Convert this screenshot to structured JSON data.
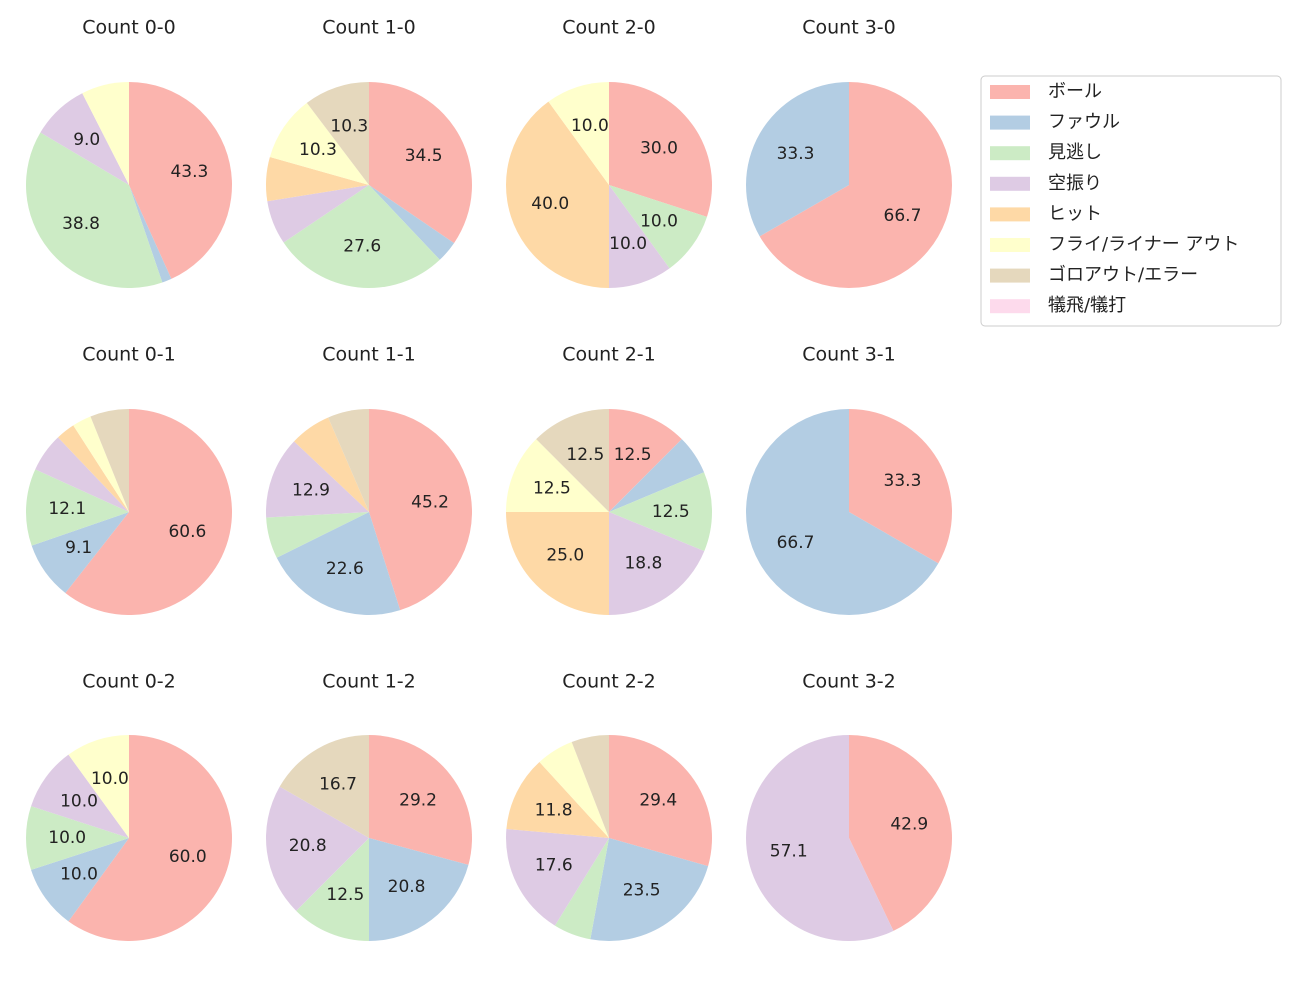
{
  "chart_data": [
    {
      "type": "pie",
      "title": "Count 0-0",
      "categories": [
        "ボール",
        "ファウル",
        "見逃し",
        "空振り",
        "ヒット",
        "フライ/ライナー アウト",
        "ゴロアウト/エラー",
        "犠飛/犠打"
      ],
      "colors": [
        "#fbb4ae",
        "#b3cde3",
        "#ccebc5",
        "#decbe4",
        "#fed9a6",
        "#ffffcc",
        "#e5d8bd",
        "#fddaec"
      ],
      "values": [
        43.3,
        1.5,
        38.8,
        9.0,
        0,
        7.5,
        0,
        0
      ],
      "value_labels": [
        "43.3",
        null,
        "38.8",
        "9.0",
        null,
        null,
        null,
        null
      ]
    },
    {
      "type": "pie",
      "title": "Count 1-0",
      "categories": [
        "ボール",
        "ファウル",
        "見逃し",
        "空振り",
        "ヒット",
        "フライ/ライナー アウト",
        "ゴロアウト/エラー",
        "犠飛/犠打"
      ],
      "colors": [
        "#fbb4ae",
        "#b3cde3",
        "#ccebc5",
        "#decbe4",
        "#fed9a6",
        "#ffffcc",
        "#e5d8bd",
        "#fddaec"
      ],
      "values": [
        34.5,
        3.4,
        27.6,
        6.9,
        6.9,
        10.3,
        10.3,
        0
      ],
      "value_labels": [
        "34.5",
        null,
        "27.6",
        null,
        null,
        "10.3",
        "10.3",
        null
      ]
    },
    {
      "type": "pie",
      "title": "Count 2-0",
      "categories": [
        "ボール",
        "ファウル",
        "見逃し",
        "空振り",
        "ヒット",
        "フライ/ライナー アウト",
        "ゴロアウト/エラー",
        "犠飛/犠打"
      ],
      "colors": [
        "#fbb4ae",
        "#b3cde3",
        "#ccebc5",
        "#decbe4",
        "#fed9a6",
        "#ffffcc",
        "#e5d8bd",
        "#fddaec"
      ],
      "values": [
        30.0,
        0,
        10.0,
        10.0,
        40.0,
        10.0,
        0,
        0
      ],
      "value_labels": [
        "30.0",
        null,
        "10.0",
        "10.0",
        "40.0",
        "10.0",
        null,
        null
      ]
    },
    {
      "type": "pie",
      "title": "Count 3-0",
      "categories": [
        "ボール",
        "ファウル",
        "見逃し",
        "空振り",
        "ヒット",
        "フライ/ライナー アウト",
        "ゴロアウト/エラー",
        "犠飛/犠打"
      ],
      "colors": [
        "#fbb4ae",
        "#b3cde3",
        "#ccebc5",
        "#decbe4",
        "#fed9a6",
        "#ffffcc",
        "#e5d8bd",
        "#fddaec"
      ],
      "values": [
        66.7,
        33.3,
        0,
        0,
        0,
        0,
        0,
        0
      ],
      "value_labels": [
        "66.7",
        "33.3",
        null,
        null,
        null,
        null,
        null,
        null
      ]
    },
    {
      "type": "pie",
      "title": "Count 0-1",
      "categories": [
        "ボール",
        "ファウル",
        "見逃し",
        "空振り",
        "ヒット",
        "フライ/ライナー アウト",
        "ゴロアウト/エラー",
        "犠飛/犠打"
      ],
      "colors": [
        "#fbb4ae",
        "#b3cde3",
        "#ccebc5",
        "#decbe4",
        "#fed9a6",
        "#ffffcc",
        "#e5d8bd",
        "#fddaec"
      ],
      "values": [
        60.6,
        9.1,
        12.1,
        6.1,
        3.0,
        3.0,
        6.1,
        0
      ],
      "value_labels": [
        "60.6",
        "9.1",
        "12.1",
        null,
        null,
        null,
        null,
        null
      ]
    },
    {
      "type": "pie",
      "title": "Count 1-1",
      "categories": [
        "ボール",
        "ファウル",
        "見逃し",
        "空振り",
        "ヒット",
        "フライ/ライナー アウト",
        "ゴロアウト/エラー",
        "犠飛/犠打"
      ],
      "colors": [
        "#fbb4ae",
        "#b3cde3",
        "#ccebc5",
        "#decbe4",
        "#fed9a6",
        "#ffffcc",
        "#e5d8bd",
        "#fddaec"
      ],
      "values": [
        45.2,
        22.6,
        6.5,
        12.9,
        6.5,
        0,
        6.5,
        0
      ],
      "value_labels": [
        "45.2",
        "22.6",
        null,
        "12.9",
        null,
        null,
        null,
        null
      ]
    },
    {
      "type": "pie",
      "title": "Count 2-1",
      "categories": [
        "ボール",
        "ファウル",
        "見逃し",
        "空振り",
        "ヒット",
        "フライ/ライナー アウト",
        "ゴロアウト/エラー",
        "犠飛/犠打"
      ],
      "colors": [
        "#fbb4ae",
        "#b3cde3",
        "#ccebc5",
        "#decbe4",
        "#fed9a6",
        "#ffffcc",
        "#e5d8bd",
        "#fddaec"
      ],
      "values": [
        12.5,
        6.2,
        12.5,
        18.8,
        25.0,
        12.5,
        12.5,
        0
      ],
      "value_labels": [
        "12.5",
        null,
        "12.5",
        "18.8",
        "25.0",
        "12.5",
        "12.5",
        null
      ]
    },
    {
      "type": "pie",
      "title": "Count 3-1",
      "categories": [
        "ボール",
        "ファウル",
        "見逃し",
        "空振り",
        "ヒット",
        "フライ/ライナー アウト",
        "ゴロアウト/エラー",
        "犠飛/犠打"
      ],
      "colors": [
        "#fbb4ae",
        "#b3cde3",
        "#ccebc5",
        "#decbe4",
        "#fed9a6",
        "#ffffcc",
        "#e5d8bd",
        "#fddaec"
      ],
      "values": [
        33.3,
        66.7,
        0,
        0,
        0,
        0,
        0,
        0
      ],
      "value_labels": [
        "33.3",
        "66.7",
        null,
        null,
        null,
        null,
        null,
        null
      ]
    },
    {
      "type": "pie",
      "title": "Count 0-2",
      "categories": [
        "ボール",
        "ファウル",
        "見逃し",
        "空振り",
        "ヒット",
        "フライ/ライナー アウト",
        "ゴロアウト/エラー",
        "犠飛/犠打"
      ],
      "colors": [
        "#fbb4ae",
        "#b3cde3",
        "#ccebc5",
        "#decbe4",
        "#fed9a6",
        "#ffffcc",
        "#e5d8bd",
        "#fddaec"
      ],
      "values": [
        60.0,
        10.0,
        10.0,
        10.0,
        0,
        10.0,
        0,
        0
      ],
      "value_labels": [
        "60.0",
        "10.0",
        "10.0",
        "10.0",
        null,
        "10.0",
        null,
        null
      ]
    },
    {
      "type": "pie",
      "title": "Count 1-2",
      "categories": [
        "ボール",
        "ファウル",
        "見逃し",
        "空振り",
        "ヒット",
        "フライ/ライナー アウト",
        "ゴロアウト/エラー",
        "犠飛/犠打"
      ],
      "colors": [
        "#fbb4ae",
        "#b3cde3",
        "#ccebc5",
        "#decbe4",
        "#fed9a6",
        "#ffffcc",
        "#e5d8bd",
        "#fddaec"
      ],
      "values": [
        29.2,
        20.8,
        12.5,
        20.8,
        0,
        0,
        16.7,
        0
      ],
      "value_labels": [
        "29.2",
        "20.8",
        "12.5",
        "20.8",
        null,
        null,
        "16.7",
        null
      ]
    },
    {
      "type": "pie",
      "title": "Count 2-2",
      "categories": [
        "ボール",
        "ファウル",
        "見逃し",
        "空振り",
        "ヒット",
        "フライ/ライナー アウト",
        "ゴロアウト/エラー",
        "犠飛/犠打"
      ],
      "colors": [
        "#fbb4ae",
        "#b3cde3",
        "#ccebc5",
        "#decbe4",
        "#fed9a6",
        "#ffffcc",
        "#e5d8bd",
        "#fddaec"
      ],
      "values": [
        29.4,
        23.5,
        5.9,
        17.6,
        11.8,
        5.9,
        5.9,
        0
      ],
      "value_labels": [
        "29.4",
        "23.5",
        null,
        "17.6",
        "11.8",
        null,
        null,
        null
      ]
    },
    {
      "type": "pie",
      "title": "Count 3-2",
      "categories": [
        "ボール",
        "ファウル",
        "見逃し",
        "空振り",
        "ヒット",
        "フライ/ライナー アウト",
        "ゴロアウト/エラー",
        "犠飛/犠打"
      ],
      "colors": [
        "#fbb4ae",
        "#b3cde3",
        "#ccebc5",
        "#decbe4",
        "#fed9a6",
        "#ffffcc",
        "#e5d8bd",
        "#fddaec"
      ],
      "values": [
        42.9,
        0,
        0,
        57.1,
        0,
        0,
        0,
        0
      ],
      "value_labels": [
        "42.9",
        null,
        null,
        "57.1",
        null,
        null,
        null,
        null
      ]
    }
  ]
}
